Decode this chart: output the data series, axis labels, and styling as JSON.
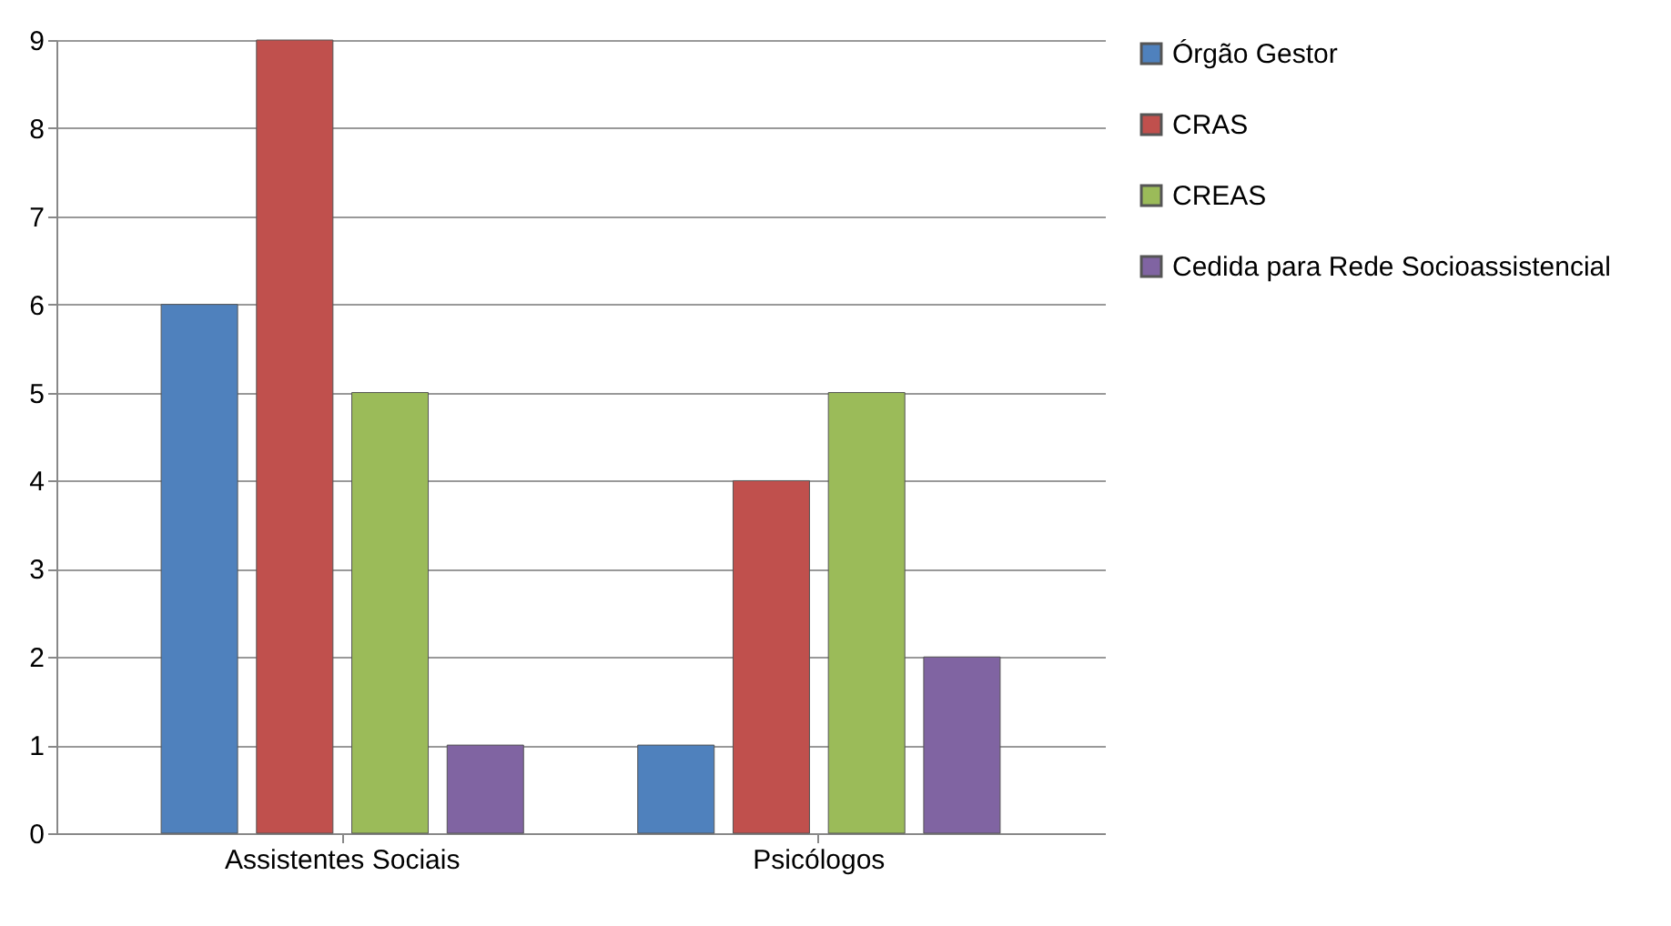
{
  "chart_data": {
    "type": "bar",
    "categories": [
      "Assistentes Sociais",
      "Psicólogos"
    ],
    "series": [
      {
        "name": "Órgão Gestor",
        "color": "#4f81bd",
        "values": [
          6,
          1
        ]
      },
      {
        "name": "CRAS",
        "color": "#c0504d",
        "values": [
          9,
          4
        ]
      },
      {
        "name": "CREAS",
        "color": "#9bbb59",
        "values": [
          5,
          5
        ]
      },
      {
        "name": "Cedida para Rede Socioassistencial",
        "color": "#8064a2",
        "values": [
          1,
          2
        ]
      }
    ],
    "ylim": [
      0,
      9
    ],
    "yticks": [
      0,
      1,
      2,
      3,
      4,
      5,
      6,
      7,
      8,
      9
    ],
    "grid": "y",
    "legend": "right"
  }
}
